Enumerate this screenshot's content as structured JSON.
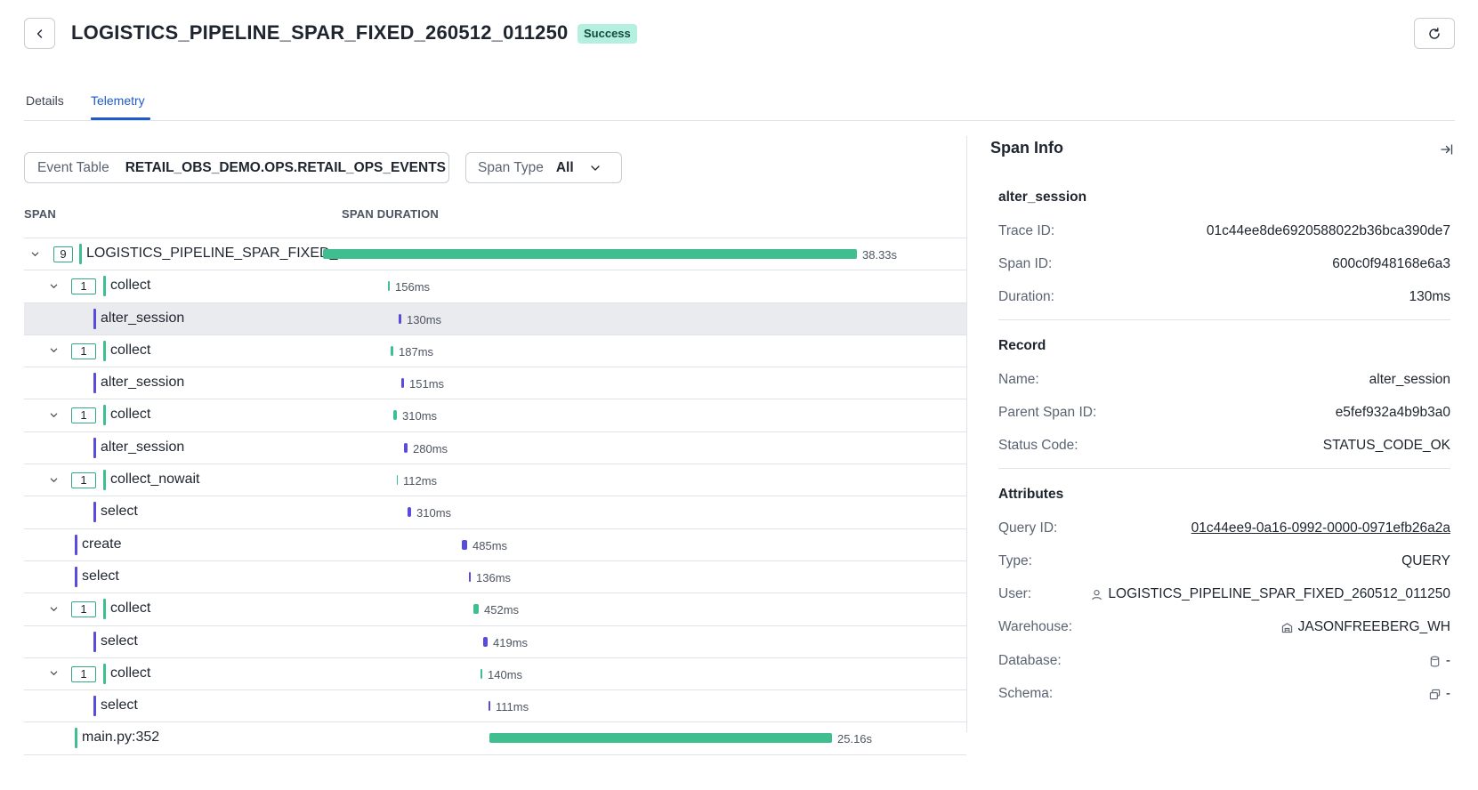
{
  "header": {
    "title": "LOGISTICS_PIPELINE_SPAR_FIXED_260512_011250",
    "status": "Success"
  },
  "tabs": [
    {
      "label": "Details",
      "active": false
    },
    {
      "label": "Telemetry",
      "active": true
    }
  ],
  "filters": {
    "event_table": {
      "label": "Event Table",
      "value": "RETAIL_OBS_DEMO.OPS.RETAIL_OPS_EVENTS"
    },
    "span_type": {
      "label": "Span Type",
      "value": "All"
    }
  },
  "columns": {
    "span": "SPAN",
    "duration": "SPAN DURATION"
  },
  "spans": [
    {
      "name": "LOGISTICS_PIPELINE_SPAR_FIXED_...",
      "count": "9",
      "duration": "38.33s",
      "level": 0,
      "kind": "green",
      "expandable": true
    },
    {
      "name": "collect",
      "count": "1",
      "duration": "156ms",
      "level": 1,
      "kind": "green",
      "expandable": true
    },
    {
      "name": "alter_session",
      "duration": "130ms",
      "level": 2,
      "kind": "purple",
      "selected": true
    },
    {
      "name": "collect",
      "count": "1",
      "duration": "187ms",
      "level": 1,
      "kind": "green",
      "expandable": true
    },
    {
      "name": "alter_session",
      "duration": "151ms",
      "level": 2,
      "kind": "purple"
    },
    {
      "name": "collect",
      "count": "1",
      "duration": "310ms",
      "level": 1,
      "kind": "green",
      "expandable": true
    },
    {
      "name": "alter_session",
      "duration": "280ms",
      "level": 2,
      "kind": "purple"
    },
    {
      "name": "collect_nowait",
      "count": "1",
      "duration": "112ms",
      "level": 1,
      "kind": "green",
      "expandable": true
    },
    {
      "name": "select",
      "duration": "310ms",
      "level": 2,
      "kind": "purple"
    },
    {
      "name": "create",
      "duration": "485ms",
      "level": 1,
      "kind": "purple"
    },
    {
      "name": "select",
      "duration": "136ms",
      "level": 1,
      "kind": "purple"
    },
    {
      "name": "collect",
      "count": "1",
      "duration": "452ms",
      "level": 1,
      "kind": "green",
      "expandable": true
    },
    {
      "name": "select",
      "duration": "419ms",
      "level": 2,
      "kind": "purple"
    },
    {
      "name": "collect",
      "count": "1",
      "duration": "140ms",
      "level": 1,
      "kind": "green",
      "expandable": true
    },
    {
      "name": "select",
      "duration": "111ms",
      "level": 2,
      "kind": "purple"
    },
    {
      "name": "main.py:352",
      "duration": "25.16s",
      "level": 1,
      "kind": "green"
    }
  ],
  "span_info": {
    "title": "Span Info",
    "span_name": "alter_session",
    "trace_id_label": "Trace ID:",
    "trace_id": "01c44ee8de6920588022b36bca390de7",
    "span_id_label": "Span ID:",
    "span_id": "600c0f948168e6a3",
    "duration_label": "Duration:",
    "duration": "130ms",
    "record": {
      "title": "Record",
      "name_label": "Name:",
      "name": "alter_session",
      "parent_label": "Parent Span ID:",
      "parent": "e5fef932a4b9b3a0",
      "status_label": "Status Code:",
      "status": "STATUS_CODE_OK"
    },
    "attributes": {
      "title": "Attributes",
      "query_id_label": "Query ID:",
      "query_id": "01c44ee9-0a16-0992-0000-0971efb26a2a",
      "type_label": "Type:",
      "type": "QUERY",
      "user_label": "User:",
      "user": "LOGISTICS_PIPELINE_SPAR_FIXED_260512_011250",
      "warehouse_label": "Warehouse:",
      "warehouse": "JASONFREEBERG_WH",
      "database_label": "Database:",
      "database": "-",
      "schema_label": "Schema:",
      "schema": "-"
    }
  },
  "colors": {
    "green": "#3fbe8f",
    "purple": "#5a4cdb",
    "accent": "#1f5bc6"
  }
}
